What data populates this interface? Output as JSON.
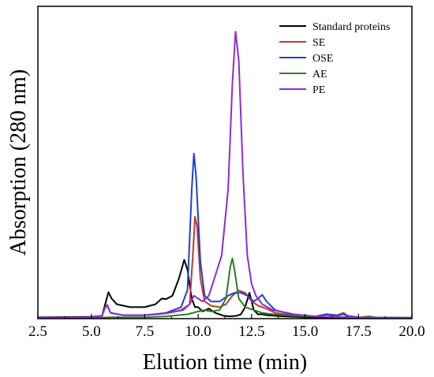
{
  "chart_data": {
    "type": "line",
    "title": "",
    "xlabel": "Elution time (min)",
    "ylabel": "Absorption (280 nm)",
    "xlim": [
      2.5,
      20.0
    ],
    "ylim": [
      0,
      1.0
    ],
    "x_ticks": [
      "2.5",
      "5.0",
      "7.5",
      "10.0",
      "12.5",
      "15.0",
      "17.5",
      "20.0"
    ],
    "y_ticks_shown": false,
    "grid": false,
    "legend_position": "top-right",
    "series": [
      {
        "name": "Standard proteins",
        "color": "#000000",
        "points": [
          [
            2.5,
            0.005
          ],
          [
            5.0,
            0.006
          ],
          [
            5.5,
            0.01
          ],
          [
            5.65,
            0.05
          ],
          [
            5.8,
            0.092
          ],
          [
            5.95,
            0.07
          ],
          [
            6.2,
            0.05
          ],
          [
            6.8,
            0.04
          ],
          [
            7.5,
            0.04
          ],
          [
            8.0,
            0.05
          ],
          [
            8.3,
            0.07
          ],
          [
            8.5,
            0.068
          ],
          [
            8.8,
            0.08
          ],
          [
            9.1,
            0.14
          ],
          [
            9.35,
            0.205
          ],
          [
            9.5,
            0.17
          ],
          [
            9.7,
            0.07
          ],
          [
            9.85,
            0.04
          ],
          [
            10.0,
            0.04
          ],
          [
            10.2,
            0.025
          ],
          [
            10.5,
            0.035
          ],
          [
            10.8,
            0.02
          ],
          [
            11.2,
            0.01
          ],
          [
            11.5,
            0.008
          ],
          [
            11.8,
            0.01
          ],
          [
            12.0,
            0.015
          ],
          [
            12.2,
            0.04
          ],
          [
            12.4,
            0.09
          ],
          [
            12.5,
            0.06
          ],
          [
            12.6,
            0.03
          ],
          [
            12.8,
            0.015
          ],
          [
            13.0,
            0.015
          ],
          [
            13.2,
            0.012
          ],
          [
            14.0,
            0.008
          ],
          [
            15.0,
            0.005
          ],
          [
            17.5,
            0.003
          ],
          [
            20.0,
            0.002
          ]
        ]
      },
      {
        "name": "SE",
        "color": "#c0392b",
        "points": [
          [
            2.5,
            0.004
          ],
          [
            5.0,
            0.004
          ],
          [
            5.5,
            0.01
          ],
          [
            5.65,
            0.04
          ],
          [
            5.75,
            0.045
          ],
          [
            5.9,
            0.02
          ],
          [
            6.5,
            0.012
          ],
          [
            7.5,
            0.012
          ],
          [
            8.5,
            0.018
          ],
          [
            9.2,
            0.03
          ],
          [
            9.6,
            0.05
          ],
          [
            9.75,
            0.22
          ],
          [
            9.85,
            0.355
          ],
          [
            9.95,
            0.32
          ],
          [
            10.1,
            0.14
          ],
          [
            10.3,
            0.06
          ],
          [
            10.6,
            0.045
          ],
          [
            11.0,
            0.04
          ],
          [
            11.3,
            0.05
          ],
          [
            11.6,
            0.08
          ],
          [
            11.9,
            0.098
          ],
          [
            12.2,
            0.09
          ],
          [
            12.5,
            0.06
          ],
          [
            12.8,
            0.045
          ],
          [
            13.2,
            0.035
          ],
          [
            13.6,
            0.02
          ],
          [
            14.5,
            0.01
          ],
          [
            15.5,
            0.008
          ],
          [
            16.0,
            0.016
          ],
          [
            16.5,
            0.012
          ],
          [
            16.8,
            0.02
          ],
          [
            17.0,
            0.01
          ],
          [
            17.5,
            0.005
          ],
          [
            20.0,
            0.003
          ]
        ]
      },
      {
        "name": "OSE",
        "color": "#1f3fd6",
        "points": [
          [
            2.5,
            0.004
          ],
          [
            5.0,
            0.004
          ],
          [
            5.5,
            0.01
          ],
          [
            5.65,
            0.04
          ],
          [
            5.75,
            0.045
          ],
          [
            5.9,
            0.02
          ],
          [
            6.5,
            0.012
          ],
          [
            7.5,
            0.012
          ],
          [
            8.5,
            0.02
          ],
          [
            9.2,
            0.04
          ],
          [
            9.5,
            0.1
          ],
          [
            9.7,
            0.45
          ],
          [
            9.8,
            0.575
          ],
          [
            9.9,
            0.5
          ],
          [
            10.1,
            0.2
          ],
          [
            10.3,
            0.08
          ],
          [
            10.6,
            0.06
          ],
          [
            11.0,
            0.06
          ],
          [
            11.4,
            0.08
          ],
          [
            11.7,
            0.09
          ],
          [
            12.0,
            0.09
          ],
          [
            12.3,
            0.08
          ],
          [
            12.6,
            0.06
          ],
          [
            12.8,
            0.07
          ],
          [
            13.0,
            0.083
          ],
          [
            13.2,
            0.06
          ],
          [
            13.6,
            0.03
          ],
          [
            14.5,
            0.012
          ],
          [
            15.5,
            0.008
          ],
          [
            16.0,
            0.014
          ],
          [
            16.5,
            0.01
          ],
          [
            16.8,
            0.016
          ],
          [
            17.0,
            0.008
          ],
          [
            17.5,
            0.005
          ],
          [
            20.0,
            0.003
          ]
        ]
      },
      {
        "name": "AE",
        "color": "#2e7d1e",
        "points": [
          [
            2.5,
            0.003
          ],
          [
            5.0,
            0.003
          ],
          [
            6.0,
            0.005
          ],
          [
            7.5,
            0.005
          ],
          [
            8.5,
            0.008
          ],
          [
            9.5,
            0.015
          ],
          [
            10.0,
            0.025
          ],
          [
            10.3,
            0.03
          ],
          [
            10.6,
            0.025
          ],
          [
            11.0,
            0.03
          ],
          [
            11.3,
            0.07
          ],
          [
            11.5,
            0.18
          ],
          [
            11.6,
            0.21
          ],
          [
            11.7,
            0.17
          ],
          [
            11.9,
            0.07
          ],
          [
            12.2,
            0.04
          ],
          [
            12.6,
            0.03
          ],
          [
            13.0,
            0.02
          ],
          [
            13.5,
            0.015
          ],
          [
            14.5,
            0.01
          ],
          [
            16.0,
            0.006
          ],
          [
            17.5,
            0.004
          ],
          [
            18.0,
            0.008
          ],
          [
            18.3,
            0.004
          ],
          [
            20.0,
            0.003
          ]
        ]
      },
      {
        "name": "PE",
        "color": "#8e2bd9",
        "points": [
          [
            2.5,
            0.004
          ],
          [
            5.0,
            0.004
          ],
          [
            5.5,
            0.01
          ],
          [
            5.65,
            0.04
          ],
          [
            5.75,
            0.048
          ],
          [
            5.9,
            0.02
          ],
          [
            6.5,
            0.012
          ],
          [
            7.5,
            0.012
          ],
          [
            8.5,
            0.018
          ],
          [
            9.3,
            0.03
          ],
          [
            9.6,
            0.05
          ],
          [
            9.8,
            0.08
          ],
          [
            10.0,
            0.07
          ],
          [
            10.2,
            0.06
          ],
          [
            10.5,
            0.08
          ],
          [
            10.8,
            0.15
          ],
          [
            11.1,
            0.22
          ],
          [
            11.4,
            0.45
          ],
          [
            11.6,
            0.82
          ],
          [
            11.75,
            1.0
          ],
          [
            11.9,
            0.9
          ],
          [
            12.1,
            0.5
          ],
          [
            12.3,
            0.22
          ],
          [
            12.5,
            0.12
          ],
          [
            12.7,
            0.08
          ],
          [
            13.0,
            0.05
          ],
          [
            13.5,
            0.03
          ],
          [
            14.5,
            0.015
          ],
          [
            15.5,
            0.008
          ],
          [
            17.5,
            0.004
          ],
          [
            20.0,
            0.003
          ]
        ]
      }
    ]
  }
}
